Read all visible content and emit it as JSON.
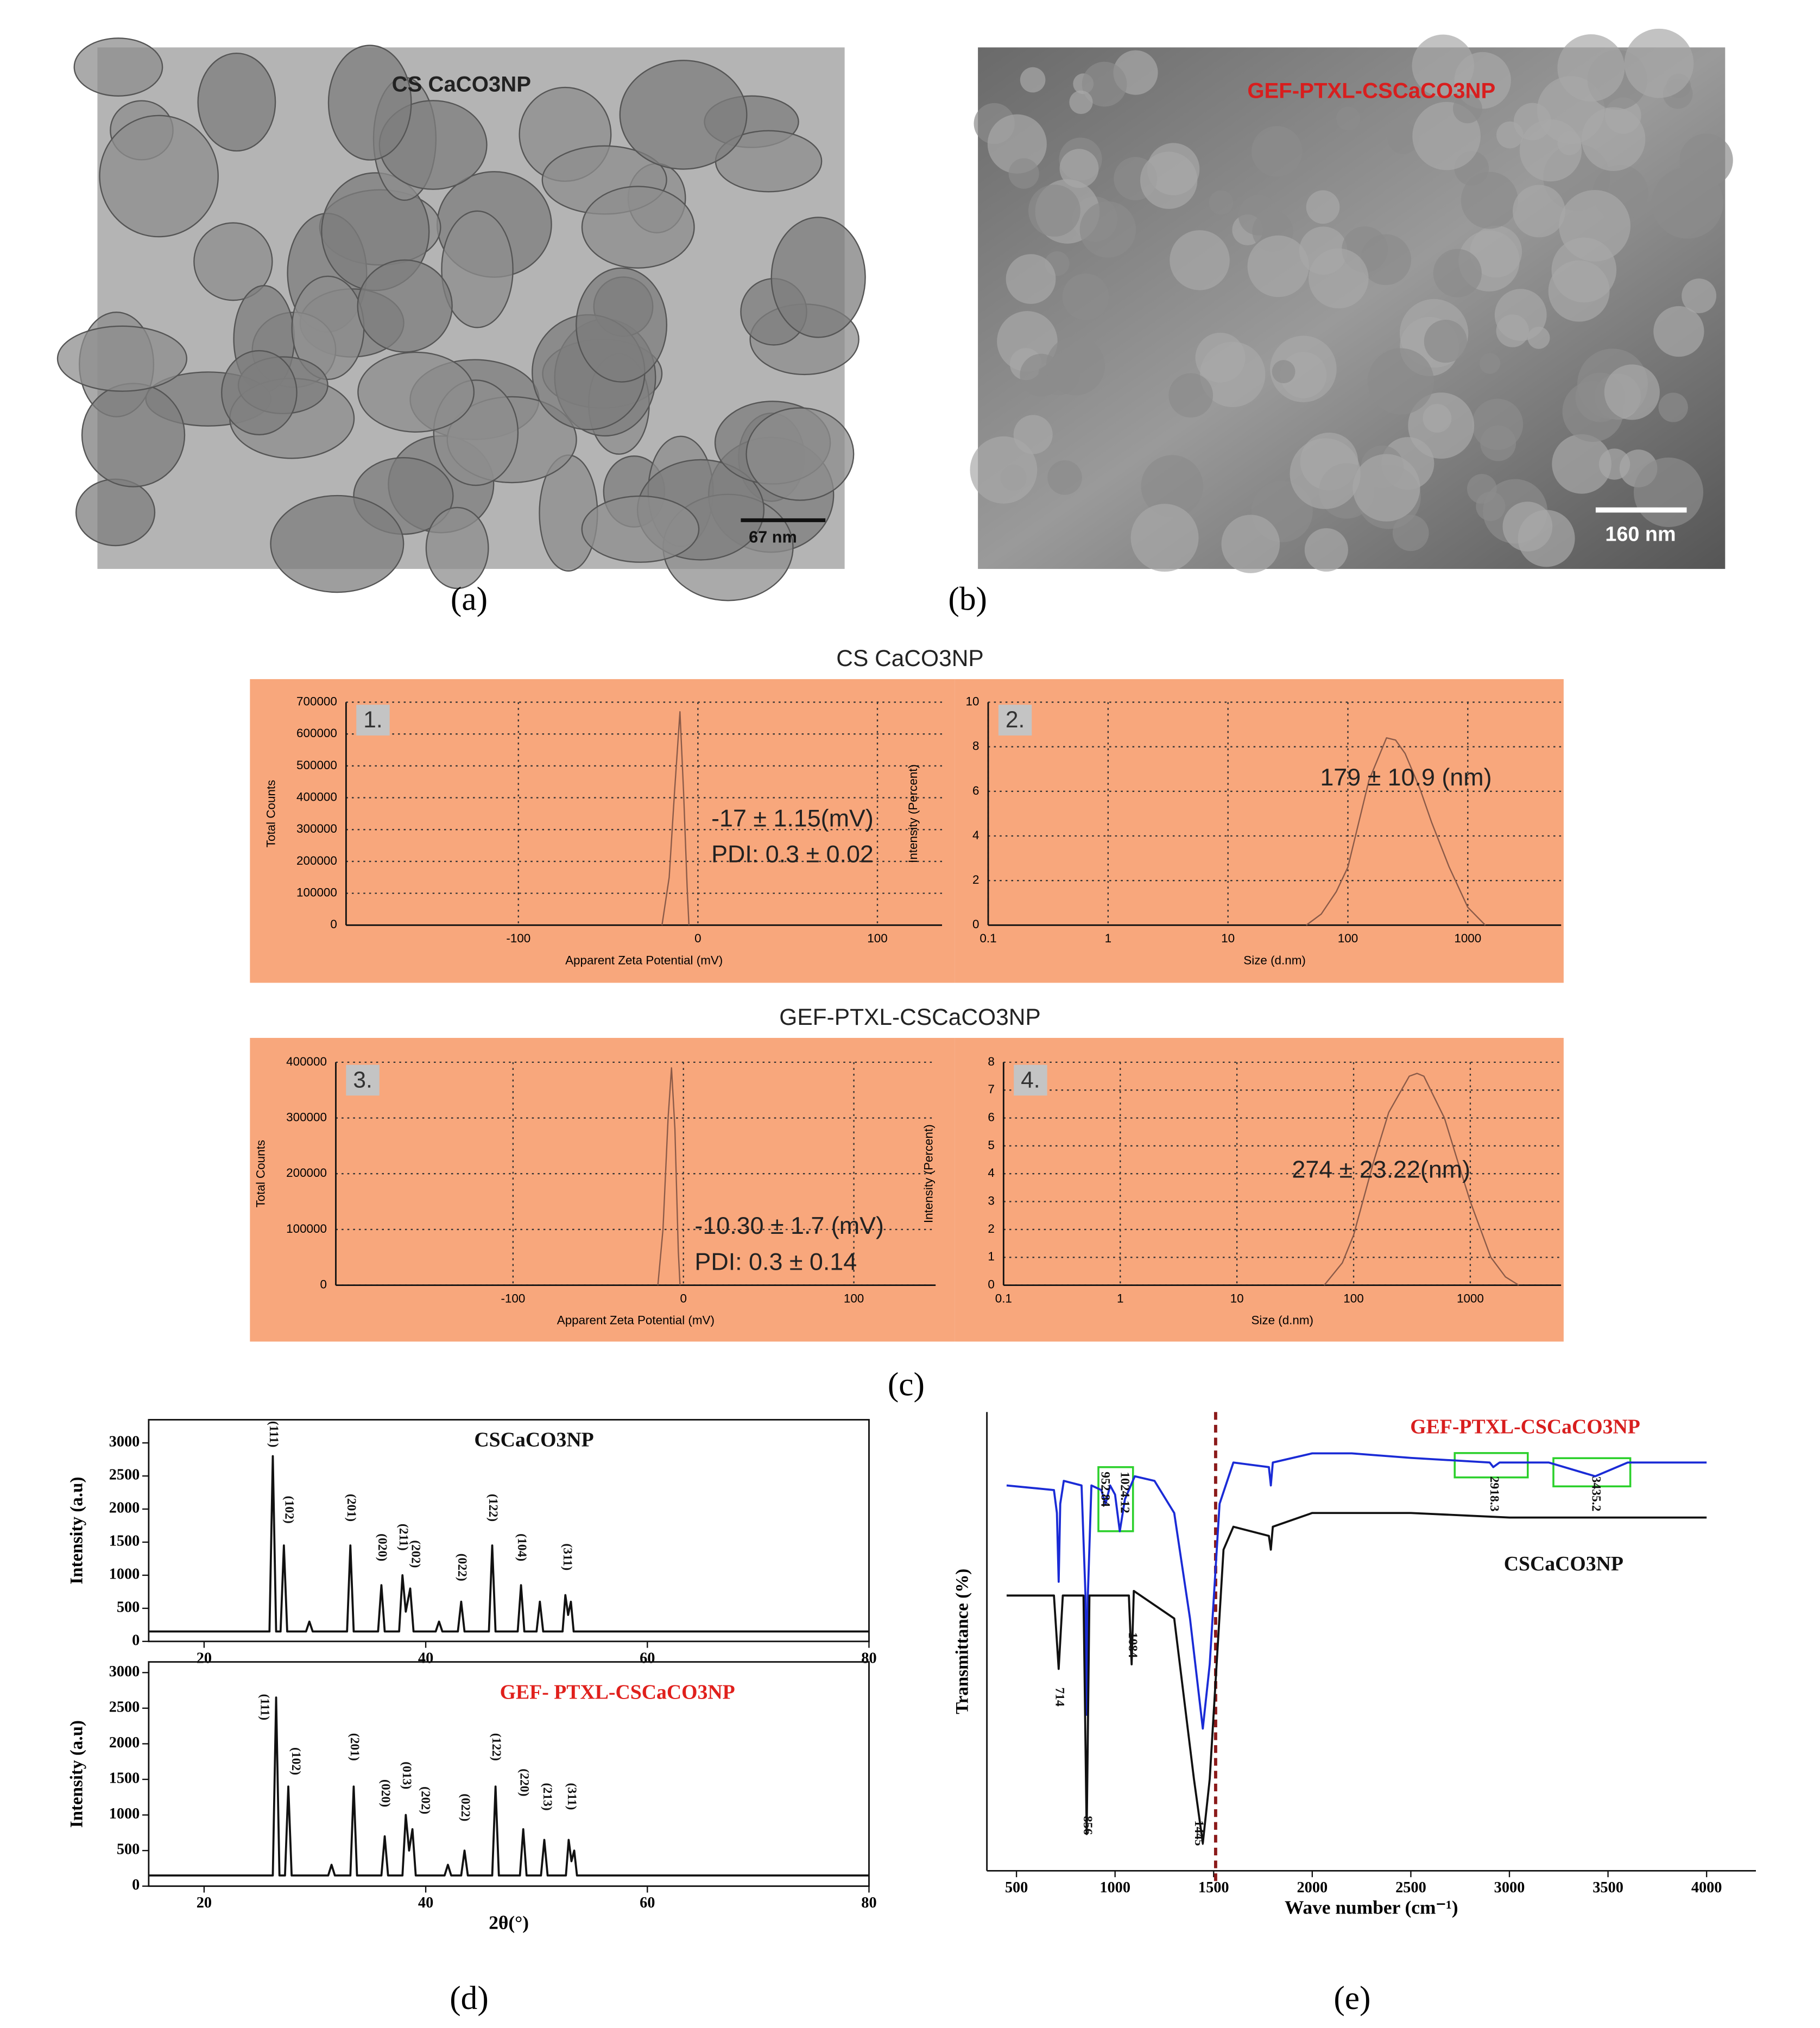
{
  "panels": {
    "a": {
      "label": "(a)",
      "title": "CS CaCO3NP",
      "scale_bar": "67 nm"
    },
    "b": {
      "label": "(b)",
      "title": "GEF-PTXL-CSCaCO3NP",
      "scale_bar": "160 nm"
    },
    "c": {
      "label": "(c)"
    },
    "d": {
      "label": "(d)"
    },
    "e": {
      "label": "(e)"
    }
  },
  "chart_data": [
    {
      "type": "line",
      "title": "CS CaCO3NP",
      "panel_number": "1.",
      "background": "#f8a77c",
      "xlabel": "Apparent Zeta Potential (mV)",
      "ylabel": "Total Counts",
      "xlim": [
        -196,
        136
      ],
      "xticks": [
        -100,
        0,
        100
      ],
      "ylim": [
        0,
        700000
      ],
      "yticks": [
        0,
        100000,
        200000,
        300000,
        400000,
        500000,
        600000,
        700000
      ],
      "grid": true,
      "series": [
        {
          "color": "#8a5a48",
          "x": [
            -20,
            -16,
            -13,
            -10,
            -8,
            -6,
            -5
          ],
          "values": [
            0,
            150000,
            420000,
            670000,
            420000,
            120000,
            0
          ]
        }
      ],
      "annotations": [
        "-17 ± 1.15(mV)",
        "PDI: 0.3 ± 0.02"
      ]
    },
    {
      "type": "line",
      "panel_number": "2.",
      "background": "#f8a77c",
      "xlabel": "Size (d.nm)",
      "ylabel": "Intensity (Percent)",
      "xlog": true,
      "xlim": [
        0.1,
        6000
      ],
      "xticks": [
        0.1,
        1,
        10,
        100,
        1000
      ],
      "ylim": [
        0,
        10
      ],
      "yticks": [
        0,
        2,
        4,
        6,
        8,
        10
      ],
      "grid": true,
      "series": [
        {
          "color": "#8a5a48",
          "x": [
            45,
            60,
            80,
            100,
            150,
            210,
            250,
            300,
            400,
            500,
            700,
            1000,
            1400
          ],
          "values": [
            0,
            0.5,
            1.5,
            2.6,
            6.5,
            8.4,
            8.3,
            7.7,
            6.1,
            4.6,
            2.6,
            0.8,
            0
          ]
        }
      ],
      "annotations": [
        "179 ± 10.9 (nm)"
      ]
    },
    {
      "type": "line",
      "title": "GEF-PTXL-CSCaCO3NP",
      "panel_number": "3.",
      "background": "#f8a77c",
      "xlabel": "Apparent Zeta Potential (mV)",
      "ylabel": "Total Counts",
      "xlim": [
        -204,
        148
      ],
      "xticks": [
        -100,
        0,
        100
      ],
      "ylim": [
        0,
        400000
      ],
      "yticks": [
        0,
        100000,
        200000,
        300000,
        400000
      ],
      "grid": true,
      "series": [
        {
          "color": "#8a5a48",
          "x": [
            -15,
            -12,
            -9,
            -7,
            -5,
            -3,
            -2
          ],
          "values": [
            0,
            100000,
            300000,
            390000,
            280000,
            60000,
            0
          ]
        }
      ],
      "annotations": [
        "-10.30 ± 1.7 (mV)",
        "PDI: 0.3 ± 0.14"
      ]
    },
    {
      "type": "line",
      "panel_number": "4.",
      "background": "#f8a77c",
      "xlabel": "Size (d.nm)",
      "ylabel": "Intensity (Percent)",
      "xlog": true,
      "xlim": [
        0.1,
        6000
      ],
      "xticks": [
        0.1,
        1,
        10,
        100,
        1000
      ],
      "ylim": [
        0,
        8
      ],
      "yticks": [
        0,
        1,
        2,
        3,
        4,
        5,
        6,
        7,
        8
      ],
      "grid": true,
      "series": [
        {
          "color": "#8a5a48",
          "x": [
            56,
            80,
            100,
            150,
            200,
            300,
            350,
            400,
            600,
            800,
            1000,
            1500,
            2000,
            2600
          ],
          "values": [
            0,
            0.8,
            1.8,
            4.5,
            6.2,
            7.5,
            7.6,
            7.5,
            6.0,
            4.3,
            3.0,
            1.0,
            0.3,
            0
          ]
        }
      ],
      "annotations": [
        "274 ± 23.22(nm)"
      ]
    },
    {
      "type": "line",
      "title": "CSCaCO3NP",
      "title_color": "#111111",
      "ylabel": "Intensity (a.u)",
      "xlim": [
        15,
        80
      ],
      "xticks": [
        20,
        40,
        60,
        80
      ],
      "ylim": [
        0,
        3350
      ],
      "yticks": [
        0,
        500,
        1000,
        1500,
        2000,
        2500,
        3000
      ],
      "series": [
        {
          "color": "#111111",
          "x": [
            15,
            25.9,
            26.2,
            26.5,
            26.9,
            27.2,
            27.5,
            29.2,
            29.5,
            29.8,
            32.9,
            33.2,
            33.5,
            35.7,
            36.0,
            36.3,
            37.6,
            37.9,
            38.2,
            38.6,
            38.9,
            40.9,
            41.2,
            41.5,
            42.9,
            43.2,
            43.5,
            45.7,
            46.0,
            46.3,
            48.3,
            48.6,
            48.9,
            50.0,
            50.3,
            50.6,
            52.35,
            52.6,
            52.85,
            53.1,
            53.35,
            80
          ],
          "values": [
            150,
            150,
            2800,
            150,
            150,
            1450,
            150,
            150,
            300,
            150,
            150,
            1450,
            150,
            150,
            850,
            150,
            150,
            1000,
            450,
            800,
            150,
            150,
            300,
            150,
            150,
            600,
            150,
            150,
            1450,
            150,
            150,
            850,
            150,
            150,
            600,
            150,
            150,
            700,
            400,
            600,
            150,
            150
          ]
        }
      ],
      "annotations": [
        {
          "label": "(111)",
          "x": 26.2,
          "y": 3330
        },
        {
          "label": "(102)",
          "x": 27.6,
          "y": 2200
        },
        {
          "label": "(201)",
          "x": 33.2,
          "y": 2230
        },
        {
          "label": "(020)",
          "x": 36.0,
          "y": 1630
        },
        {
          "label": "(211)",
          "x": 37.9,
          "y": 1780
        },
        {
          "label": "(202)",
          "x": 39.0,
          "y": 1530
        },
        {
          "label": "(022)",
          "x": 43.2,
          "y": 1330
        },
        {
          "label": "(122)",
          "x": 46.0,
          "y": 2230
        },
        {
          "label": "(104)",
          "x": 48.6,
          "y": 1630
        },
        {
          "label": "(311)",
          "x": 52.7,
          "y": 1480
        }
      ]
    },
    {
      "type": "line",
      "title": "GEF- PTXL-CSCaCO3NP",
      "title_color": "#e0201c",
      "ylabel": "Intensity (a.u)",
      "xlabel": "2θ(°)",
      "xlim": [
        15,
        80
      ],
      "xticks": [
        20,
        40,
        60,
        80
      ],
      "ylim": [
        0,
        3150
      ],
      "yticks": [
        0,
        500,
        1000,
        1500,
        2000,
        2500,
        3000
      ],
      "series": [
        {
          "color": "#111111",
          "x": [
            15,
            26.2,
            26.5,
            26.8,
            27.3,
            27.6,
            27.9,
            31.2,
            31.5,
            31.8,
            33.2,
            33.5,
            33.8,
            36.0,
            36.3,
            36.6,
            37.9,
            38.2,
            38.5,
            38.8,
            39.1,
            41.7,
            42.0,
            42.3,
            43.2,
            43.5,
            43.8,
            46.0,
            46.3,
            46.6,
            48.5,
            48.8,
            49.1,
            50.4,
            50.7,
            51.0,
            52.65,
            52.9,
            53.15,
            53.4,
            53.65,
            80
          ],
          "values": [
            150,
            150,
            2650,
            150,
            150,
            1400,
            150,
            150,
            300,
            150,
            150,
            1400,
            150,
            150,
            700,
            150,
            150,
            1000,
            500,
            800,
            150,
            150,
            300,
            150,
            150,
            500,
            150,
            150,
            1400,
            150,
            150,
            800,
            150,
            150,
            650,
            150,
            150,
            650,
            350,
            500,
            150,
            150
          ]
        }
      ],
      "annotations": [
        {
          "label": "(111)",
          "x": 25.4,
          "y": 2700
        },
        {
          "label": "(102)",
          "x": 28.2,
          "y": 1950
        },
        {
          "label": "(201)",
          "x": 33.5,
          "y": 2150
        },
        {
          "label": "(020)",
          "x": 36.3,
          "y": 1500
        },
        {
          "label": "(013)",
          "x": 38.2,
          "y": 1750
        },
        {
          "label": "(202)",
          "x": 39.9,
          "y": 1400
        },
        {
          "label": "(022)",
          "x": 43.5,
          "y": 1300
        },
        {
          "label": "(122)",
          "x": 46.3,
          "y": 2150
        },
        {
          "label": "(220)",
          "x": 48.8,
          "y": 1650
        },
        {
          "label": "(213)",
          "x": 50.9,
          "y": 1450
        },
        {
          "label": "(311)",
          "x": 53.1,
          "y": 1450
        }
      ]
    },
    {
      "type": "line",
      "xlabel": "Wave number (cm⁻¹)",
      "ylabel": "Transmittance (%)",
      "xlim": [
        350,
        4250
      ],
      "xticks": [
        500,
        1000,
        1500,
        2000,
        2500,
        3000,
        3500,
        4000
      ],
      "ylim": [
        0,
        100
      ],
      "reference_line": {
        "x": 1510,
        "color": "#8b1a1a"
      },
      "series": [
        {
          "name": "GEF-PTXL-CSCaCO3NP",
          "color": "#1a2bd6",
          "x": [
            450,
            690,
            705,
            714,
            722,
            740,
            830,
            850,
            856,
            862,
            880,
            930,
            952,
            975,
            1000,
            1024,
            1050,
            1100,
            1200,
            1300,
            1380,
            1445,
            1480,
            1530,
            1600,
            1780,
            1790,
            1800,
            2000,
            2200,
            2500,
            2900,
            2918,
            2950,
            3200,
            3435,
            3600,
            4000
          ],
          "values": [
            84,
            83,
            78,
            63,
            80,
            85,
            84,
            60,
            34,
            60,
            84,
            83,
            80,
            84,
            82,
            74,
            81,
            86,
            85,
            78,
            55,
            31,
            45,
            80,
            89,
            88,
            84,
            89,
            91,
            91,
            90,
            89,
            88,
            89,
            89,
            86,
            89,
            89
          ]
        },
        {
          "name": "CSCaCO3NP",
          "color": "#111111",
          "x": [
            450,
            690,
            714,
            735,
            840,
            856,
            870,
            1070,
            1084,
            1095,
            1300,
            1400,
            1445,
            1480,
            1550,
            1600,
            1780,
            1790,
            1800,
            2000,
            2500,
            3000,
            4000
          ],
          "values": [
            60,
            60,
            44,
            60,
            60,
            8,
            60,
            60,
            45,
            61,
            55,
            20,
            6,
            20,
            70,
            75,
            73,
            70,
            75,
            78,
            78,
            77,
            77
          ]
        }
      ],
      "annotations": [
        {
          "label": "714",
          "x": 714,
          "y": 40
        },
        {
          "label": "856",
          "x": 856,
          "y": 12
        },
        {
          "label": "1084",
          "x": 1084,
          "y": 52
        },
        {
          "label": "1445",
          "x": 1420,
          "y": 11
        },
        {
          "label": "952.84",
          "x": 945,
          "y": 87
        },
        {
          "label": "1024.12",
          "x": 1045,
          "y": 87
        },
        {
          "label": "2918.3",
          "x": 2918,
          "y": 86
        },
        {
          "label": "3435.2",
          "x": 3435,
          "y": 86
        }
      ]
    }
  ]
}
